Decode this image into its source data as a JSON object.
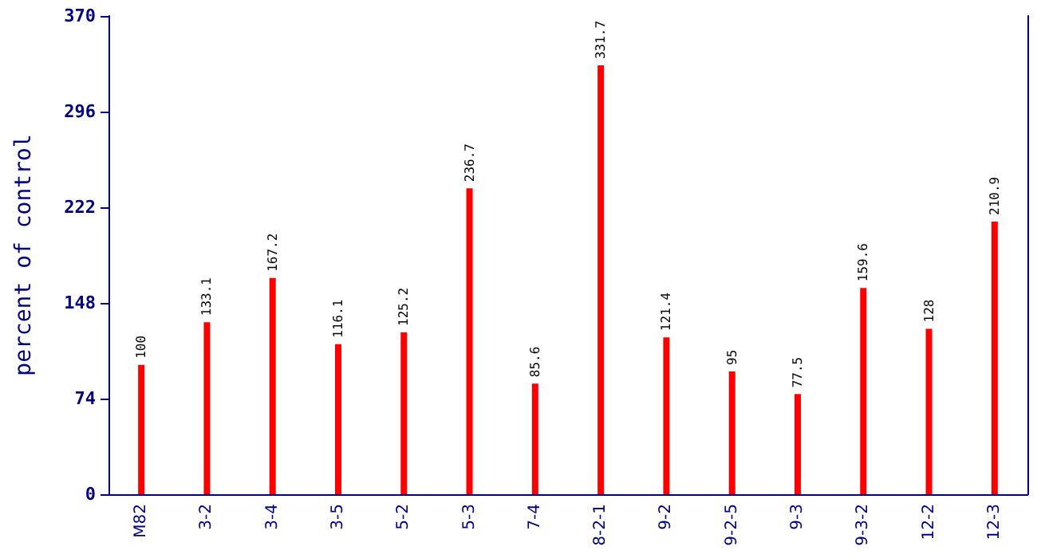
{
  "chart_data": {
    "type": "bar",
    "ylabel": "percent of control",
    "categories": [
      "M82",
      "3-2",
      "3-4",
      "3-5",
      "5-2",
      "5-3",
      "7-4",
      "8-2-1",
      "9-2",
      "9-2-5",
      "9-3",
      "9-3-2",
      "12-2",
      "12-3"
    ],
    "values": [
      100,
      133.1,
      167.2,
      116.1,
      125.2,
      236.7,
      85.6,
      331.7,
      121.4,
      95,
      77.5,
      159.6,
      128,
      210.9
    ],
    "color": "#ff0000",
    "ylim": [
      0,
      370
    ],
    "yticks": [
      0,
      74,
      148,
      222,
      296,
      370
    ],
    "grid": false,
    "data_labels": true
  }
}
